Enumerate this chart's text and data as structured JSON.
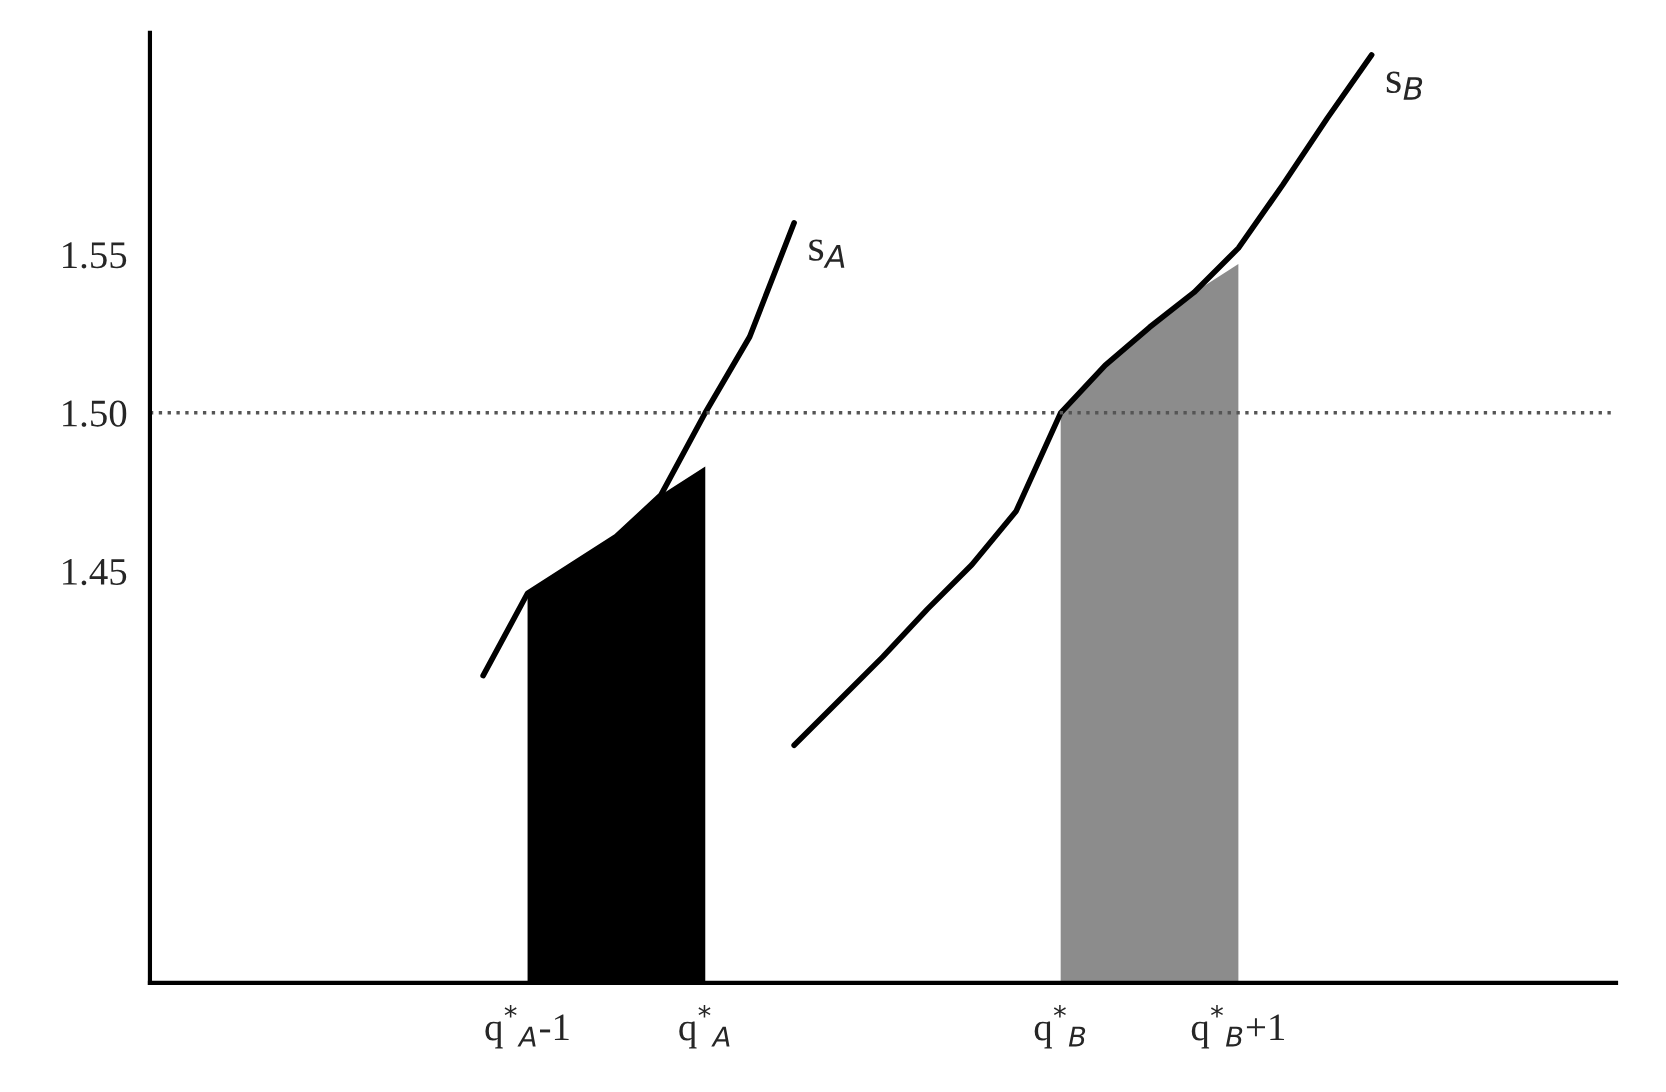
{
  "chart_data": {
    "type": "line",
    "categories": [
      null,
      null,
      null,
      null,
      null,
      null,
      null,
      null,
      "q$^{*}$$_{A}$-1",
      null,
      null,
      null,
      "q$^{*}$$_{A}$",
      null,
      null,
      null,
      null,
      null,
      null,
      null,
      "q$^{*}$$_{B}$",
      null,
      null,
      null,
      "q$^{*}$$_{B}$+1",
      null,
      null,
      null,
      null,
      null,
      null,
      null,
      null
    ],
    "series": [
      {
        "type": "area",
        "color": "#000000",
        "values": [
          null,
          null,
          null,
          null,
          null,
          null,
          null,
          null,
          1.443,
          1.452,
          1.461,
          1.474,
          1.483,
          null,
          null,
          null,
          null,
          null,
          null,
          null,
          null,
          null,
          null,
          null,
          null,
          null,
          null,
          null,
          null,
          null,
          null,
          null,
          null
        ]
      },
      {
        "type": "area",
        "color": "#8c8c8c",
        "values": [
          null,
          null,
          null,
          null,
          null,
          null,
          null,
          null,
          null,
          null,
          null,
          null,
          null,
          null,
          null,
          null,
          null,
          null,
          null,
          null,
          1.5,
          1.515,
          1.527,
          1.538,
          1.547,
          null,
          null,
          null,
          null,
          null,
          null,
          null,
          null
        ]
      },
      {
        "name": "s$_{A}$",
        "color": "#000000",
        "values": [
          null,
          null,
          null,
          null,
          null,
          null,
          null,
          1.417,
          1.443,
          1.452,
          1.461,
          1.474,
          1.5,
          1.524,
          1.56,
          null,
          null,
          null,
          null,
          null,
          null,
          null,
          null,
          null,
          null,
          null,
          null,
          null,
          null,
          null,
          null,
          null,
          null
        ]
      },
      {
        "name": "s$_{B}$",
        "color": "#000000",
        "values": [
          null,
          null,
          null,
          null,
          null,
          null,
          null,
          null,
          null,
          null,
          null,
          null,
          null,
          null,
          1.395,
          1.409,
          1.423,
          1.438,
          1.452,
          1.469,
          1.5,
          1.515,
          1.527,
          1.538,
          1.552,
          1.572,
          1.593,
          1.613,
          null,
          null,
          null,
          null,
          null
        ]
      }
    ],
    "ylim": [
      1.32,
      1.62
    ],
    "yticks": [
      1.45,
      {
        "value": 1.5,
        "label": "1.50"
      },
      1.55
    ],
    "ref_lines": [
      {
        "axis": "y",
        "value": 1.5,
        "line_style": "dotted",
        "color": "#555555"
      }
    ],
    "grid": false
  }
}
